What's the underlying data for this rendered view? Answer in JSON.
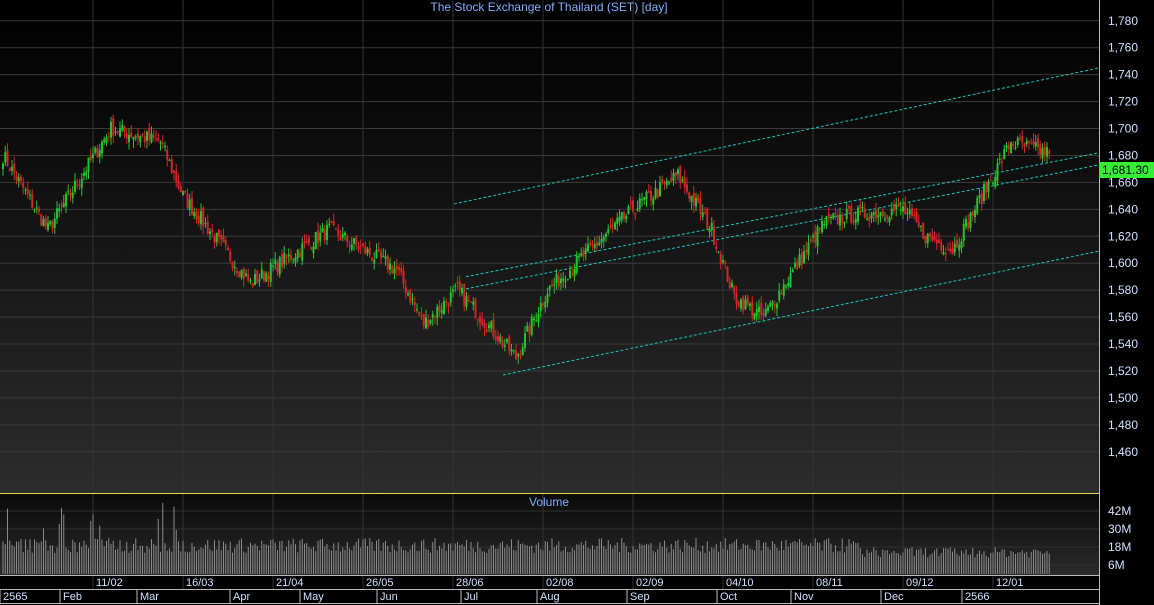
{
  "chart_data": {
    "type": "candlestick",
    "title": "The Stock Exchange of Thailand (SET) [day]",
    "volume_title": "Volume",
    "last_price_label": "1,681.30",
    "price_axis": {
      "ylim": [
        1442,
        1788
      ],
      "ticks": [
        "1,460",
        "1,480",
        "1,500",
        "1,520",
        "1,540",
        "1,560",
        "1,580",
        "1,600",
        "1,620",
        "1,640",
        "1,660",
        "1,680",
        "1,700",
        "1,720",
        "1,740",
        "1,760",
        "1,780"
      ]
    },
    "volume_axis": {
      "ylim": [
        0,
        52
      ],
      "ticks": [
        {
          "value": 6,
          "label": "6M"
        },
        {
          "value": 18,
          "label": "18M"
        },
        {
          "value": 30,
          "label": "30M"
        },
        {
          "value": 42,
          "label": "42M"
        }
      ]
    },
    "date_labels": [
      "11/02",
      "16/03",
      "21/04",
      "26/05",
      "28/06",
      "02/08",
      "02/09",
      "04/10",
      "08/11",
      "09/12",
      "12/01"
    ],
    "month_labels": [
      "2565",
      "Feb",
      "Mar",
      "Apr",
      "May",
      "Jun",
      "Jul",
      "Aug",
      "Sep",
      "Oct",
      "Nov",
      "Dec",
      "2566"
    ],
    "key_levels": [
      {
        "x": 0,
        "close": 1680
      },
      {
        "x": 20,
        "close": 1625
      },
      {
        "x": 48,
        "close": 1700
      },
      {
        "x": 70,
        "close": 1690
      },
      {
        "x": 80,
        "close": 1650
      },
      {
        "x": 110,
        "close": 1585
      },
      {
        "x": 145,
        "close": 1625
      },
      {
        "x": 175,
        "close": 1595
      },
      {
        "x": 187,
        "close": 1555
      },
      {
        "x": 202,
        "close": 1580
      },
      {
        "x": 228,
        "close": 1530
      },
      {
        "x": 242,
        "close": 1580
      },
      {
        "x": 280,
        "close": 1640
      },
      {
        "x": 300,
        "close": 1665
      },
      {
        "x": 315,
        "close": 1625
      },
      {
        "x": 325,
        "close": 1575
      },
      {
        "x": 338,
        "close": 1560
      },
      {
        "x": 365,
        "close": 1630
      },
      {
        "x": 375,
        "close": 1635
      },
      {
        "x": 400,
        "close": 1640
      },
      {
        "x": 410,
        "close": 1620
      },
      {
        "x": 422,
        "close": 1610
      },
      {
        "x": 440,
        "close": 1665
      },
      {
        "x": 448,
        "close": 1690
      },
      {
        "x": 465,
        "close": 1681.3
      }
    ],
    "channel_lines": [
      {
        "from": [
          454,
          1644
        ],
        "to": [
          1099,
          1745
        ]
      },
      {
        "from": [
          466,
          1590
        ],
        "to": [
          1099,
          1682
        ]
      },
      {
        "from": [
          466,
          1581
        ],
        "to": [
          1099,
          1673
        ]
      },
      {
        "from": [
          503,
          1517
        ],
        "to": [
          1099,
          1609
        ]
      }
    ],
    "colors": {
      "up": "#27c22b",
      "down": "#d22626",
      "channel": "#19c4c4",
      "axis_text": "#cfe0ff",
      "title": "#7fb0ff"
    }
  }
}
